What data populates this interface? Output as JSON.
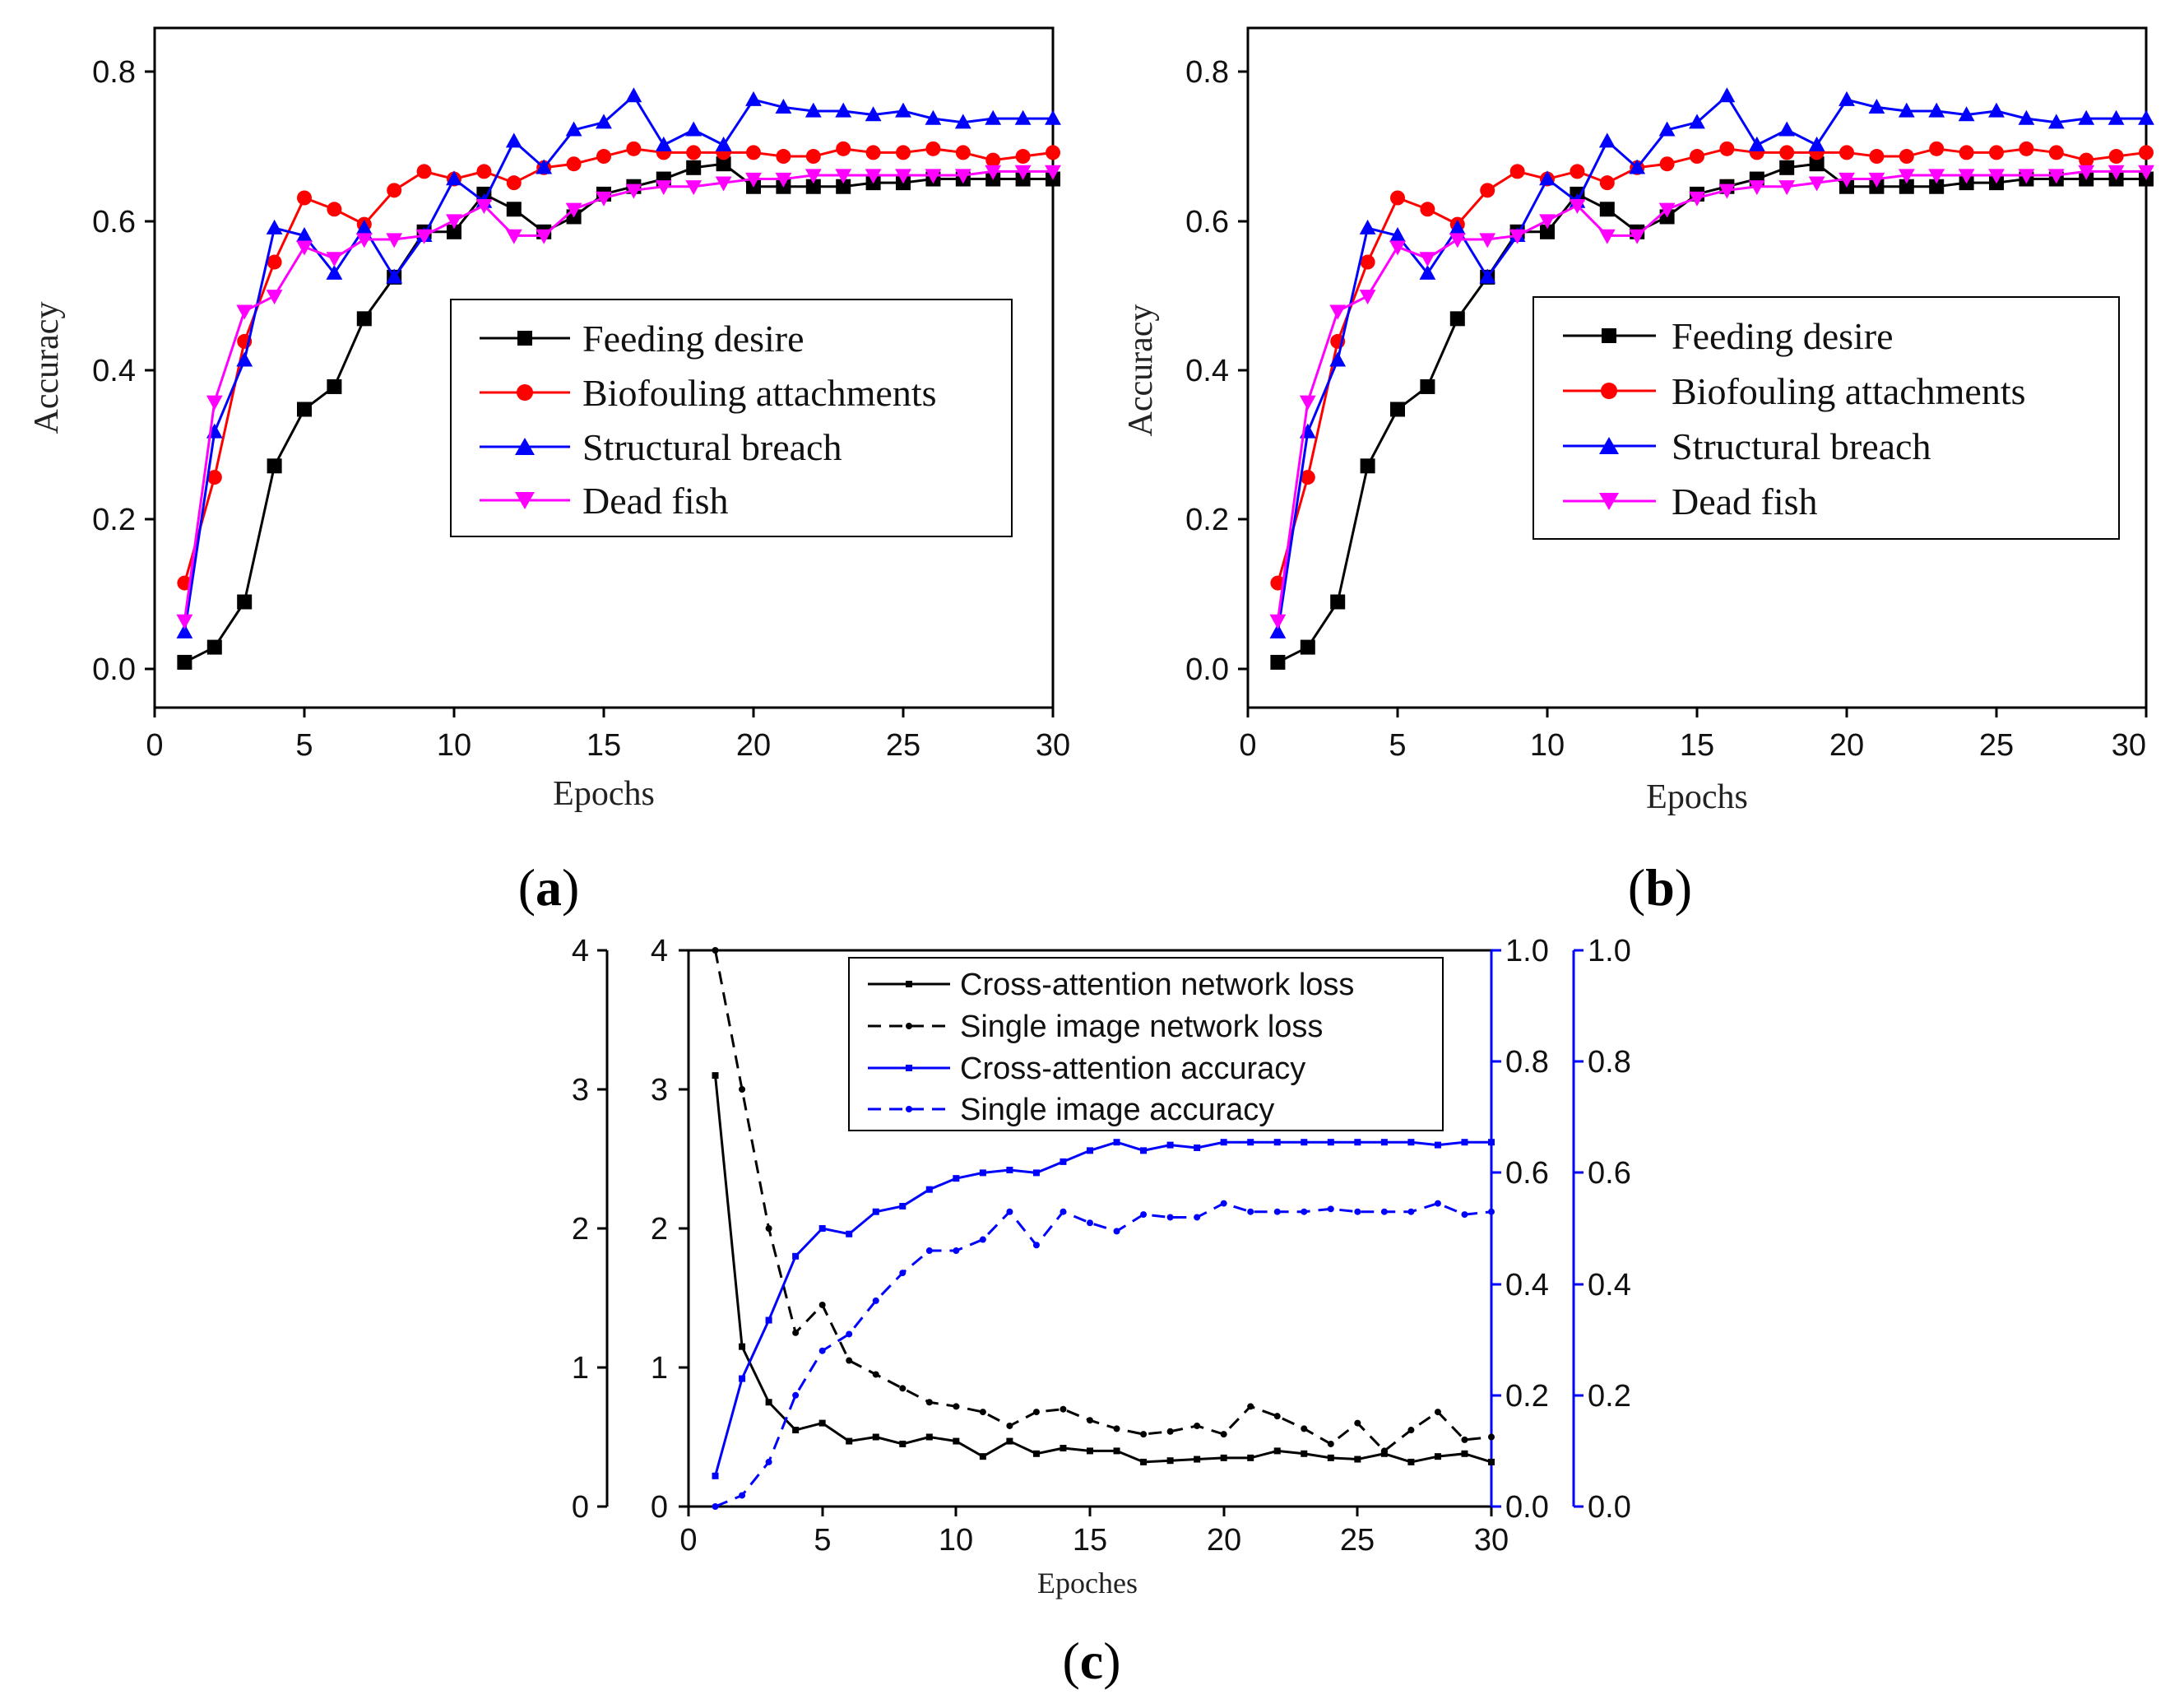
{
  "chart_data": [
    {
      "id": "a",
      "panel_label": "a",
      "type": "line",
      "xlabel": "Epochs",
      "ylabel": "Accuracy",
      "xlim": [
        0,
        30
      ],
      "ylim": [
        -0.05,
        0.85
      ],
      "xticks": [
        "0",
        "5",
        "10",
        "15",
        "20",
        "25",
        "30"
      ],
      "yticks": [
        "0.0",
        "0.2",
        "0.4",
        "0.6",
        "0.8"
      ],
      "legend_position": "center-right",
      "x": [
        1,
        2,
        3,
        4,
        5,
        6,
        7,
        8,
        9,
        10,
        11,
        12,
        13,
        14,
        15,
        16,
        17,
        18,
        19,
        20,
        21,
        22,
        23,
        24,
        25,
        26,
        27,
        28,
        29,
        30
      ],
      "series": [
        {
          "name": "Feeding desire",
          "color": "#000000",
          "marker": "square",
          "values": [
            0.01,
            0.03,
            0.09,
            0.27,
            0.345,
            0.375,
            0.465,
            0.52,
            0.58,
            0.58,
            0.63,
            0.61,
            0.58,
            0.6,
            0.63,
            0.64,
            0.65,
            0.665,
            0.67,
            0.64,
            0.64,
            0.64,
            0.64,
            0.645,
            0.645,
            0.65,
            0.65,
            0.65,
            0.65,
            0.65
          ]
        },
        {
          "name": "Biofouling attachments",
          "color": "#ff0000",
          "marker": "circle",
          "values": [
            0.115,
            0.255,
            0.435,
            0.54,
            0.625,
            0.61,
            0.59,
            0.635,
            0.66,
            0.65,
            0.66,
            0.645,
            0.665,
            0.67,
            0.68,
            0.69,
            0.685,
            0.685,
            0.685,
            0.685,
            0.68,
            0.68,
            0.69,
            0.685,
            0.685,
            0.69,
            0.685,
            0.675,
            0.68,
            0.685
          ]
        },
        {
          "name": "Structural breach",
          "color": "#0000ff",
          "marker": "triangle-up",
          "values": [
            0.05,
            0.315,
            0.41,
            0.585,
            0.575,
            0.525,
            0.585,
            0.52,
            0.575,
            0.65,
            0.62,
            0.7,
            0.665,
            0.715,
            0.725,
            0.76,
            0.695,
            0.715,
            0.695,
            0.755,
            0.745,
            0.74,
            0.74,
            0.735,
            0.74,
            0.73,
            0.725,
            0.73,
            0.73,
            0.73
          ]
        },
        {
          "name": "Dead fish",
          "color": "#ff00ff",
          "marker": "triangle-down",
          "values": [
            0.065,
            0.355,
            0.475,
            0.495,
            0.56,
            0.545,
            0.57,
            0.57,
            0.575,
            0.595,
            0.615,
            0.575,
            0.575,
            0.61,
            0.625,
            0.635,
            0.64,
            0.64,
            0.645,
            0.65,
            0.65,
            0.655,
            0.655,
            0.655,
            0.655,
            0.655,
            0.655,
            0.66,
            0.66,
            0.66
          ]
        }
      ]
    },
    {
      "id": "b",
      "panel_label": "b",
      "type": "line",
      "xlabel": "Epochs",
      "ylabel": "Accuracy",
      "xlim": [
        0,
        30
      ],
      "ylim": [
        -0.05,
        0.85
      ],
      "xticks": [
        "0",
        "5",
        "10",
        "15",
        "20",
        "25",
        "30"
      ],
      "yticks": [
        "0.0",
        "0.2",
        "0.4",
        "0.6",
        "0.8"
      ],
      "legend_position": "center-right",
      "x": [
        1,
        2,
        3,
        4,
        5,
        6,
        7,
        8,
        9,
        10,
        11,
        12,
        13,
        14,
        15,
        16,
        17,
        18,
        19,
        20,
        21,
        22,
        23,
        24,
        25,
        26,
        27,
        28,
        29,
        30
      ],
      "series": [
        {
          "name": "Feeding desire",
          "color": "#000000",
          "marker": "square",
          "values": [
            0.01,
            0.03,
            0.09,
            0.27,
            0.345,
            0.375,
            0.465,
            0.52,
            0.58,
            0.58,
            0.63,
            0.61,
            0.58,
            0.6,
            0.63,
            0.64,
            0.65,
            0.665,
            0.67,
            0.64,
            0.64,
            0.64,
            0.64,
            0.645,
            0.645,
            0.65,
            0.65,
            0.65,
            0.65,
            0.65
          ]
        },
        {
          "name": "Biofouling attachments",
          "color": "#ff0000",
          "marker": "circle",
          "values": [
            0.115,
            0.255,
            0.435,
            0.54,
            0.625,
            0.61,
            0.59,
            0.635,
            0.66,
            0.65,
            0.66,
            0.645,
            0.665,
            0.67,
            0.68,
            0.69,
            0.685,
            0.685,
            0.685,
            0.685,
            0.68,
            0.68,
            0.69,
            0.685,
            0.685,
            0.69,
            0.685,
            0.675,
            0.68,
            0.685
          ]
        },
        {
          "name": "Structural breach",
          "color": "#0000ff",
          "marker": "triangle-up",
          "values": [
            0.05,
            0.315,
            0.41,
            0.585,
            0.575,
            0.525,
            0.585,
            0.52,
            0.575,
            0.65,
            0.62,
            0.7,
            0.665,
            0.715,
            0.725,
            0.76,
            0.695,
            0.715,
            0.695,
            0.755,
            0.745,
            0.74,
            0.74,
            0.735,
            0.74,
            0.73,
            0.725,
            0.73,
            0.73,
            0.73
          ]
        },
        {
          "name": "Dead fish",
          "color": "#ff00ff",
          "marker": "triangle-down",
          "values": [
            0.065,
            0.355,
            0.475,
            0.495,
            0.56,
            0.545,
            0.57,
            0.57,
            0.575,
            0.595,
            0.615,
            0.575,
            0.575,
            0.61,
            0.625,
            0.635,
            0.64,
            0.64,
            0.645,
            0.65,
            0.65,
            0.655,
            0.655,
            0.655,
            0.655,
            0.655,
            0.655,
            0.66,
            0.66,
            0.66
          ]
        }
      ]
    },
    {
      "id": "c",
      "panel_label": "c",
      "type": "line",
      "xlabel": "Epoches",
      "ylabel": "",
      "xlim": [
        0,
        30
      ],
      "ylim": [
        0,
        4
      ],
      "y2lim": [
        0,
        1
      ],
      "xticks": [
        "0",
        "5",
        "10",
        "15",
        "20",
        "25",
        "30"
      ],
      "yticks": [
        "0",
        "1",
        "2",
        "3",
        "4"
      ],
      "y2ticks": [
        "0.0",
        "0.2",
        "0.4",
        "0.6",
        "0.8",
        "1.0"
      ],
      "legend_position": "top-right",
      "x": [
        1,
        2,
        3,
        4,
        5,
        6,
        7,
        8,
        9,
        10,
        11,
        12,
        13,
        14,
        15,
        16,
        17,
        18,
        19,
        20,
        21,
        22,
        23,
        24,
        25,
        26,
        27,
        28,
        29,
        30
      ],
      "series": [
        {
          "name": "Cross-attention network loss",
          "color": "#000000",
          "dash": "solid",
          "axis": "left",
          "marker": "square",
          "values": [
            3.1,
            1.15,
            0.75,
            0.55,
            0.6,
            0.47,
            0.5,
            0.45,
            0.5,
            0.47,
            0.36,
            0.47,
            0.38,
            0.42,
            0.4,
            0.4,
            0.32,
            0.33,
            0.34,
            0.35,
            0.35,
            0.4,
            0.38,
            0.35,
            0.34,
            0.38,
            0.32,
            0.36,
            0.38,
            0.32
          ]
        },
        {
          "name": "Single image network loss",
          "color": "#000000",
          "dash": "dashed",
          "axis": "left",
          "marker": "circle",
          "values": [
            4.0,
            3.0,
            2.0,
            1.25,
            1.45,
            1.05,
            0.95,
            0.85,
            0.75,
            0.72,
            0.68,
            0.58,
            0.68,
            0.7,
            0.62,
            0.56,
            0.52,
            0.54,
            0.58,
            0.52,
            0.72,
            0.65,
            0.56,
            0.45,
            0.6,
            0.4,
            0.55,
            0.68,
            0.48,
            0.5
          ]
        },
        {
          "name": "Cross-attention accuracy",
          "color": "#0000ff",
          "dash": "solid",
          "axis": "right",
          "marker": "square",
          "values": [
            0.055,
            0.23,
            0.335,
            0.45,
            0.5,
            0.49,
            0.53,
            0.54,
            0.57,
            0.59,
            0.6,
            0.605,
            0.6,
            0.62,
            0.64,
            0.655,
            0.64,
            0.65,
            0.645,
            0.655,
            0.655,
            0.655,
            0.655,
            0.655,
            0.655,
            0.655,
            0.655,
            0.65,
            0.655,
            0.655
          ]
        },
        {
          "name": "Single image accuracy",
          "color": "#0000ff",
          "dash": "dashed",
          "axis": "right",
          "marker": "circle",
          "values": [
            0.0,
            0.02,
            0.08,
            0.2,
            0.28,
            0.31,
            0.37,
            0.42,
            0.46,
            0.46,
            0.48,
            0.53,
            0.47,
            0.53,
            0.51,
            0.495,
            0.525,
            0.52,
            0.52,
            0.545,
            0.53,
            0.53,
            0.53,
            0.535,
            0.53,
            0.53,
            0.53,
            0.545,
            0.525,
            0.53
          ]
        }
      ]
    }
  ]
}
